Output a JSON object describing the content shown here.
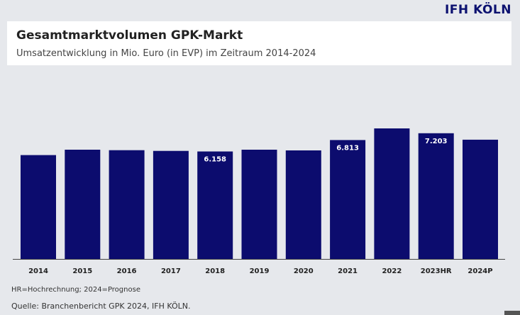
{
  "brand": {
    "logo_text": "IFH KÖLN",
    "accent_color": "#0c1170"
  },
  "header": {
    "title": "Gesamtmarktvolumen GPK-Markt",
    "subtitle": "Umsatzentwicklung in Mio. Euro (in EVP) im Zeitraum 2014-2024"
  },
  "chart_data": {
    "type": "bar",
    "categories": [
      "2014",
      "2015",
      "2016",
      "2017",
      "2018",
      "2019",
      "2020",
      "2021",
      "2022",
      "2023HR",
      "2024P"
    ],
    "series": [
      {
        "values": [
          5950,
          6260,
          6230,
          6190,
          6158,
          6260,
          6220,
          6813,
          7480,
          7203,
          6830
        ],
        "data_labels": [
          "",
          "",
          "",
          "",
          "6.158",
          "",
          "",
          "6.813",
          "",
          "7.203",
          ""
        ]
      }
    ],
    "ylim": [
      0,
      7600
    ],
    "grid": false,
    "bar_color": "#0c0c6e",
    "baseline_color": "#444444",
    "label_color": "#ffffff"
  },
  "footer": {
    "note": "HR=Hochrechnung; 2024=Prognose",
    "source": "Quelle: Branchenbericht GPK 2024, IFH KÖLN."
  }
}
